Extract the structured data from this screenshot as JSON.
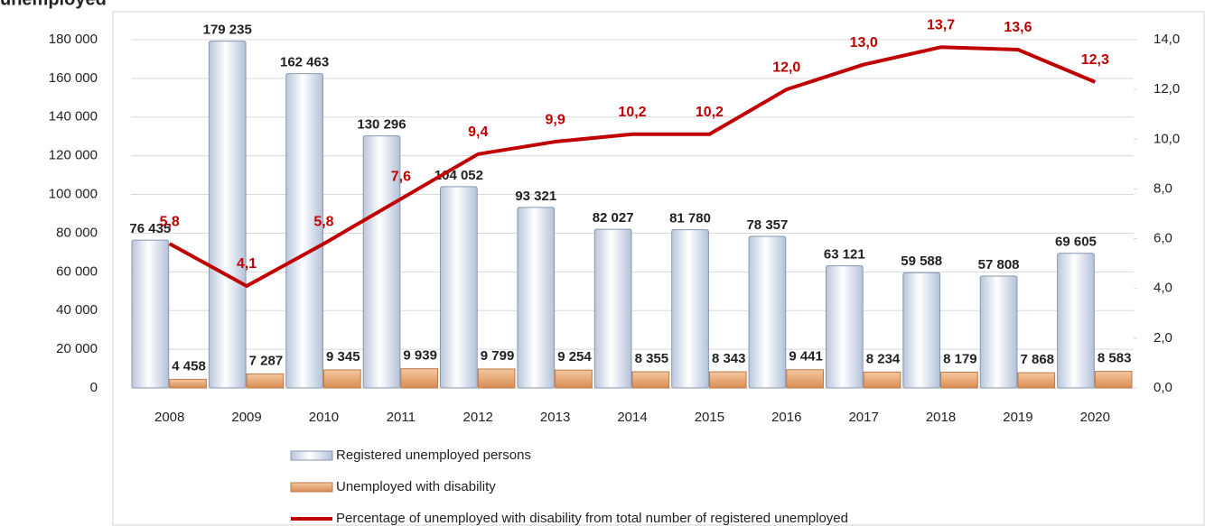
{
  "chart_data": {
    "type": "bar_line",
    "title": "unemployed",
    "categories": [
      "2008",
      "2009",
      "2010",
      "2011",
      "2012",
      "2013",
      "2014",
      "2015",
      "2016",
      "2017",
      "2018",
      "2019",
      "2020"
    ],
    "series": [
      {
        "name": "Registered unemployed persons",
        "color": "#dfe6f3",
        "values": [
          76435,
          179235,
          162463,
          130296,
          104052,
          93321,
          82027,
          81780,
          78357,
          63121,
          59588,
          57808,
          69605
        ],
        "value_labels": [
          "76 435",
          "179 235",
          "162 463",
          "130 296",
          "104 052",
          "93 321",
          "82 027",
          "81 780",
          "78 357",
          "63 121",
          "59 588",
          "57 808",
          "69 605"
        ]
      },
      {
        "name": "Unemployed with disability",
        "color": "#e8a878",
        "values": [
          4458,
          7287,
          9345,
          9939,
          9799,
          9254,
          8355,
          8343,
          9441,
          8234,
          8179,
          7868,
          8583
        ],
        "value_labels": [
          "4 458",
          "7 287",
          "9 345",
          "9 939",
          "9 799",
          "9 254",
          "8 355",
          "8 343",
          "9 441",
          "8 234",
          "8 179",
          "7 868",
          "8 583"
        ]
      },
      {
        "name": "Percentage of unemployed with disability from total number of registered unemployed",
        "color": "#c00000",
        "axis": "y2",
        "values": [
          5.8,
          4.1,
          5.8,
          7.6,
          9.4,
          9.9,
          10.2,
          10.2,
          12.0,
          13.0,
          13.7,
          13.6,
          12.3
        ],
        "value_labels": [
          "5,8",
          "4,1",
          "5,8",
          "7,6",
          "9,4",
          "9,9",
          "10,2",
          "10,2",
          "12,0",
          "13,0",
          "13,7",
          "13,6",
          "12,3"
        ]
      }
    ],
    "ylim": [
      0,
      180000
    ],
    "yticks": [
      0,
      {
        "value": 20000,
        "label": "20 000"
      },
      {
        "value": 40000,
        "label": "40 000"
      },
      {
        "value": 60000,
        "label": "60 000"
      },
      {
        "value": 80000,
        "label": "80 000"
      },
      {
        "value": 100000,
        "label": "100 000"
      },
      {
        "value": 120000,
        "label": "120 000"
      },
      {
        "value": 140000,
        "label": "140 000"
      },
      {
        "value": 160000,
        "label": "160 000"
      },
      {
        "value": 180000,
        "label": "180 000"
      }
    ],
    "y2lim": [
      0,
      14
    ],
    "y2ticks": [
      {
        "value": 0,
        "label": "0,0"
      },
      {
        "value": 2,
        "label": "2,0"
      },
      {
        "value": 4,
        "label": "4,0"
      },
      {
        "value": 6,
        "label": "6,0"
      },
      {
        "value": 8,
        "label": "8,0"
      },
      {
        "value": 10,
        "label": "10,0"
      },
      {
        "value": 12,
        "label": "12,0"
      },
      {
        "value": 14,
        "label": "14,0"
      }
    ],
    "grid": true
  }
}
